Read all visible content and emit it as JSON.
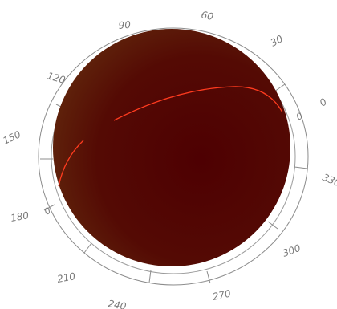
{
  "azimuth_labels": [
    {
      "text": "90"
    },
    {
      "text": "60"
    },
    {
      "text": "30"
    },
    {
      "text": "0"
    },
    {
      "text": "330"
    },
    {
      "text": "300"
    },
    {
      "text": "270"
    },
    {
      "text": "240"
    },
    {
      "text": "210"
    },
    {
      "text": "180"
    },
    {
      "text": "150"
    },
    {
      "text": "120"
    }
  ],
  "inner_labels": [
    {
      "text": "0"
    },
    {
      "text": "0"
    }
  ],
  "colors": {
    "sphere_center": "#4a0000",
    "sphere_edge": "#5a1a08",
    "track": "#ff3a1a",
    "ring_line": "#8a8a8a",
    "label": "#7a7a7a"
  }
}
